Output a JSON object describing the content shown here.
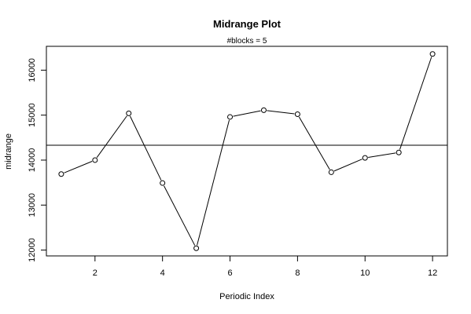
{
  "chart_data": {
    "type": "line",
    "title": "Midrange Plot",
    "subtitle": "#blocks =  5",
    "xlabel": "Periodic Index",
    "ylabel": "midrange",
    "x": [
      1,
      2,
      3,
      4,
      5,
      6,
      7,
      8,
      9,
      10,
      11,
      12
    ],
    "values": [
      13690,
      14000,
      15040,
      13490,
      12040,
      14960,
      15110,
      15020,
      13730,
      14050,
      14170,
      16360
    ],
    "reference_line": 14330,
    "xlim": [
      0.56,
      12.44
    ],
    "ylim": [
      11870,
      16530
    ],
    "x_ticks": [
      2,
      4,
      6,
      8,
      10,
      12
    ],
    "y_ticks": [
      12000,
      13000,
      14000,
      15000,
      16000
    ],
    "grid": false,
    "legend": "none",
    "marker": "open-circle",
    "color": "#000000"
  }
}
